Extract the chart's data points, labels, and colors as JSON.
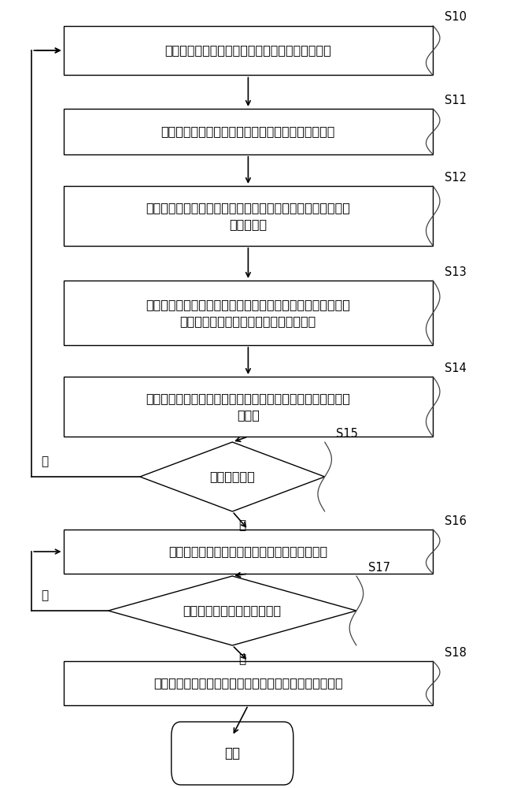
{
  "bg_color": "#ffffff",
  "box_border_color": "#000000",
  "box_fill_color": "#ffffff",
  "arrow_color": "#000000",
  "text_color": "#000000",
  "s10_label": "获取当前时刻主用户对应的全部次用户的位置信息",
  "s11_label": "根据位置信息确定各次用户能够接收到的信号强度值",
  "s12_label": "选取信号强度值大于预设信号强度值的次用户作为参与定位的\n目标次用户",
  "s13_label": "对由目标次用户构成的区域利用位置信息计算该区域内的质心\n的位置信息以得到主用户的初步位置信息",
  "s14_label": "将初步位置信息输入粒子滤波算法模型中得到主用户的当前位\n置信息",
  "s15_label": "启动调整机制",
  "s16_label": "输出当前位置信息以作为主用户本轮的定位结果",
  "s17_label": "接收到主用户停止运动的信息",
  "s18_label": "触发粒子滤波算法模型输出下一轮主用户的当前位置信息",
  "end_label": "结束",
  "yes_label": "是",
  "no_label": "否",
  "font_size_main": 11.5,
  "font_size_tag": 10.5,
  "font_size_yn": 11.0
}
